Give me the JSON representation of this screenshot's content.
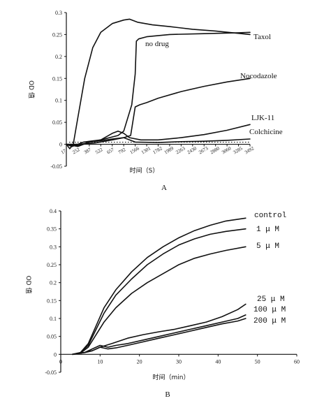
{
  "chart_data": [
    {
      "panel": "A",
      "type": "line",
      "ylabel": "OD 值",
      "xlabel": "时间（S）",
      "ylim": [
        -0.05,
        0.3
      ],
      "yticks": [
        "0.3",
        "0.25",
        "0.2",
        "0.15",
        "0.1",
        "0.05",
        "0",
        "-0.05"
      ],
      "ytick_values": [
        0.3,
        0.25,
        0.2,
        0.15,
        0.1,
        0.05,
        0,
        -0.05
      ],
      "x_categories": [
        "17",
        "252",
        "387",
        "522",
        "657",
        "792",
        "1566",
        "1301",
        "1782",
        "1989",
        "2263",
        "2430",
        "2673",
        "2880",
        "3060",
        "3285",
        "3492"
      ],
      "grid": false,
      "series": [
        {
          "name": "Taxol",
          "points": [
            [
              0,
              0
            ],
            [
              0.3,
              -0.01
            ],
            [
              0.6,
              0.0
            ],
            [
              1.0,
              0.06
            ],
            [
              1.6,
              0.15
            ],
            [
              2.3,
              0.22
            ],
            [
              3.0,
              0.255
            ],
            [
              4.0,
              0.275
            ],
            [
              5.0,
              0.283
            ],
            [
              5.5,
              0.285
            ],
            [
              6.2,
              0.278
            ],
            [
              7.5,
              0.272
            ],
            [
              9.0,
              0.268
            ],
            [
              11.0,
              0.262
            ],
            [
              13.0,
              0.258
            ],
            [
              16.0,
              0.25
            ]
          ]
        },
        {
          "name": "no drug",
          "points": [
            [
              0,
              0
            ],
            [
              0.5,
              -0.005
            ],
            [
              1.5,
              0.005
            ],
            [
              3.0,
              0.01
            ],
            [
              4.5,
              0.02
            ],
            [
              5.0,
              0.03
            ],
            [
              5.7,
              0.09
            ],
            [
              6.0,
              0.16
            ],
            [
              6.1,
              0.235
            ],
            [
              6.3,
              0.24
            ],
            [
              7.0,
              0.245
            ],
            [
              9.0,
              0.25
            ],
            [
              12.0,
              0.252
            ],
            [
              15.0,
              0.254
            ],
            [
              16.0,
              0.255
            ]
          ]
        },
        {
          "name": "Nocodazole",
          "points": [
            [
              0,
              0
            ],
            [
              1.0,
              0.0
            ],
            [
              2.5,
              0.003
            ],
            [
              4.0,
              0.01
            ],
            [
              5.0,
              0.015
            ],
            [
              5.6,
              0.02
            ],
            [
              6.0,
              0.085
            ],
            [
              6.4,
              0.09
            ],
            [
              7.0,
              0.095
            ],
            [
              8.0,
              0.105
            ],
            [
              10.0,
              0.12
            ],
            [
              12.0,
              0.132
            ],
            [
              14.0,
              0.142
            ],
            [
              16.0,
              0.15
            ]
          ]
        },
        {
          "name": "LJK-11",
          "points": [
            [
              0,
              0
            ],
            [
              1.0,
              -0.005
            ],
            [
              2.0,
              0.005
            ],
            [
              3.0,
              0.01
            ],
            [
              4.0,
              0.025
            ],
            [
              4.5,
              0.03
            ],
            [
              5.0,
              0.025
            ],
            [
              5.5,
              0.015
            ],
            [
              6.5,
              0.01
            ],
            [
              8.0,
              0.01
            ],
            [
              10.0,
              0.015
            ],
            [
              12.0,
              0.022
            ],
            [
              14.0,
              0.032
            ],
            [
              16.0,
              0.045
            ]
          ]
        },
        {
          "name": "Colchicine",
          "points": [
            [
              0,
              0
            ],
            [
              1.0,
              -0.003
            ],
            [
              2.0,
              0.005
            ],
            [
              3.0,
              0.008
            ],
            [
              4.0,
              0.012
            ],
            [
              5.0,
              0.015
            ],
            [
              6.0,
              0.005
            ],
            [
              8.0,
              0.004
            ],
            [
              10.0,
              0.006
            ],
            [
              12.0,
              0.007
            ],
            [
              14.0,
              0.009
            ],
            [
              16.0,
              0.012
            ]
          ]
        }
      ],
      "panel_label": "A"
    },
    {
      "panel": "B",
      "type": "line",
      "ylabel": "OD 值",
      "xlabel": "时间（min）",
      "xlim": [
        0,
        60
      ],
      "ylim": [
        -0.05,
        0.4
      ],
      "xticks": [
        "0",
        "10",
        "20",
        "30",
        "40",
        "50",
        "60"
      ],
      "xtick_values": [
        0,
        10,
        20,
        30,
        40,
        50,
        60
      ],
      "yticks": [
        "0.4",
        "0.35",
        "0.3",
        "0.25",
        "0.2",
        "0.15",
        "0.1",
        "0.05",
        "0",
        "-0.05"
      ],
      "ytick_values": [
        0.4,
        0.35,
        0.3,
        0.25,
        0.2,
        0.15,
        0.1,
        0.05,
        0,
        -0.05
      ],
      "grid": false,
      "series": [
        {
          "name": "control",
          "points": [
            [
              3,
              0
            ],
            [
              5,
              0.005
            ],
            [
              7,
              0.03
            ],
            [
              9,
              0.08
            ],
            [
              11,
              0.13
            ],
            [
              14,
              0.18
            ],
            [
              18,
              0.23
            ],
            [
              22,
              0.27
            ],
            [
              26,
              0.3
            ],
            [
              30,
              0.325
            ],
            [
              34,
              0.345
            ],
            [
              38,
              0.36
            ],
            [
              42,
              0.372
            ],
            [
              47,
              0.38
            ]
          ]
        },
        {
          "name": "1 μ M",
          "points": [
            [
              3,
              0
            ],
            [
              5,
              0.005
            ],
            [
              7,
              0.025
            ],
            [
              9,
              0.07
            ],
            [
              11,
              0.115
            ],
            [
              14,
              0.165
            ],
            [
              18,
              0.21
            ],
            [
              22,
              0.25
            ],
            [
              26,
              0.28
            ],
            [
              30,
              0.305
            ],
            [
              34,
              0.322
            ],
            [
              38,
              0.335
            ],
            [
              42,
              0.343
            ],
            [
              47,
              0.35
            ]
          ]
        },
        {
          "name": "5 μ M",
          "points": [
            [
              3,
              0
            ],
            [
              5,
              0.003
            ],
            [
              7,
              0.02
            ],
            [
              9,
              0.055
            ],
            [
              11,
              0.09
            ],
            [
              14,
              0.13
            ],
            [
              18,
              0.17
            ],
            [
              22,
              0.2
            ],
            [
              26,
              0.225
            ],
            [
              30,
              0.25
            ],
            [
              34,
              0.268
            ],
            [
              38,
              0.28
            ],
            [
              42,
              0.29
            ],
            [
              47,
              0.3
            ]
          ]
        },
        {
          "name": "25 μ M",
          "points": [
            [
              3,
              0
            ],
            [
              6,
              0.005
            ],
            [
              8,
              0.01
            ],
            [
              10,
              0.02
            ],
            [
              13,
              0.03
            ],
            [
              17,
              0.045
            ],
            [
              21,
              0.055
            ],
            [
              25,
              0.063
            ],
            [
              29,
              0.07
            ],
            [
              33,
              0.08
            ],
            [
              37,
              0.09
            ],
            [
              41,
              0.105
            ],
            [
              45,
              0.125
            ],
            [
              47,
              0.14
            ]
          ]
        },
        {
          "name": "100 μ M",
          "points": [
            [
              3,
              0
            ],
            [
              6,
              0.005
            ],
            [
              8,
              0.015
            ],
            [
              10,
              0.025
            ],
            [
              12,
              0.02
            ],
            [
              14,
              0.025
            ],
            [
              17,
              0.03
            ],
            [
              21,
              0.04
            ],
            [
              25,
              0.05
            ],
            [
              29,
              0.06
            ],
            [
              33,
              0.07
            ],
            [
              37,
              0.08
            ],
            [
              41,
              0.09
            ],
            [
              45,
              0.1
            ],
            [
              47,
              0.11
            ]
          ]
        },
        {
          "name": "200 μ M",
          "points": [
            [
              3,
              0
            ],
            [
              6,
              0.005
            ],
            [
              8,
              0.01
            ],
            [
              10,
              0.02
            ],
            [
              12,
              0.015
            ],
            [
              14,
              0.018
            ],
            [
              17,
              0.025
            ],
            [
              21,
              0.035
            ],
            [
              25,
              0.045
            ],
            [
              29,
              0.055
            ],
            [
              33,
              0.065
            ],
            [
              37,
              0.075
            ],
            [
              41,
              0.085
            ],
            [
              45,
              0.093
            ],
            [
              47,
              0.1
            ]
          ]
        }
      ],
      "panel_label": "B"
    }
  ]
}
